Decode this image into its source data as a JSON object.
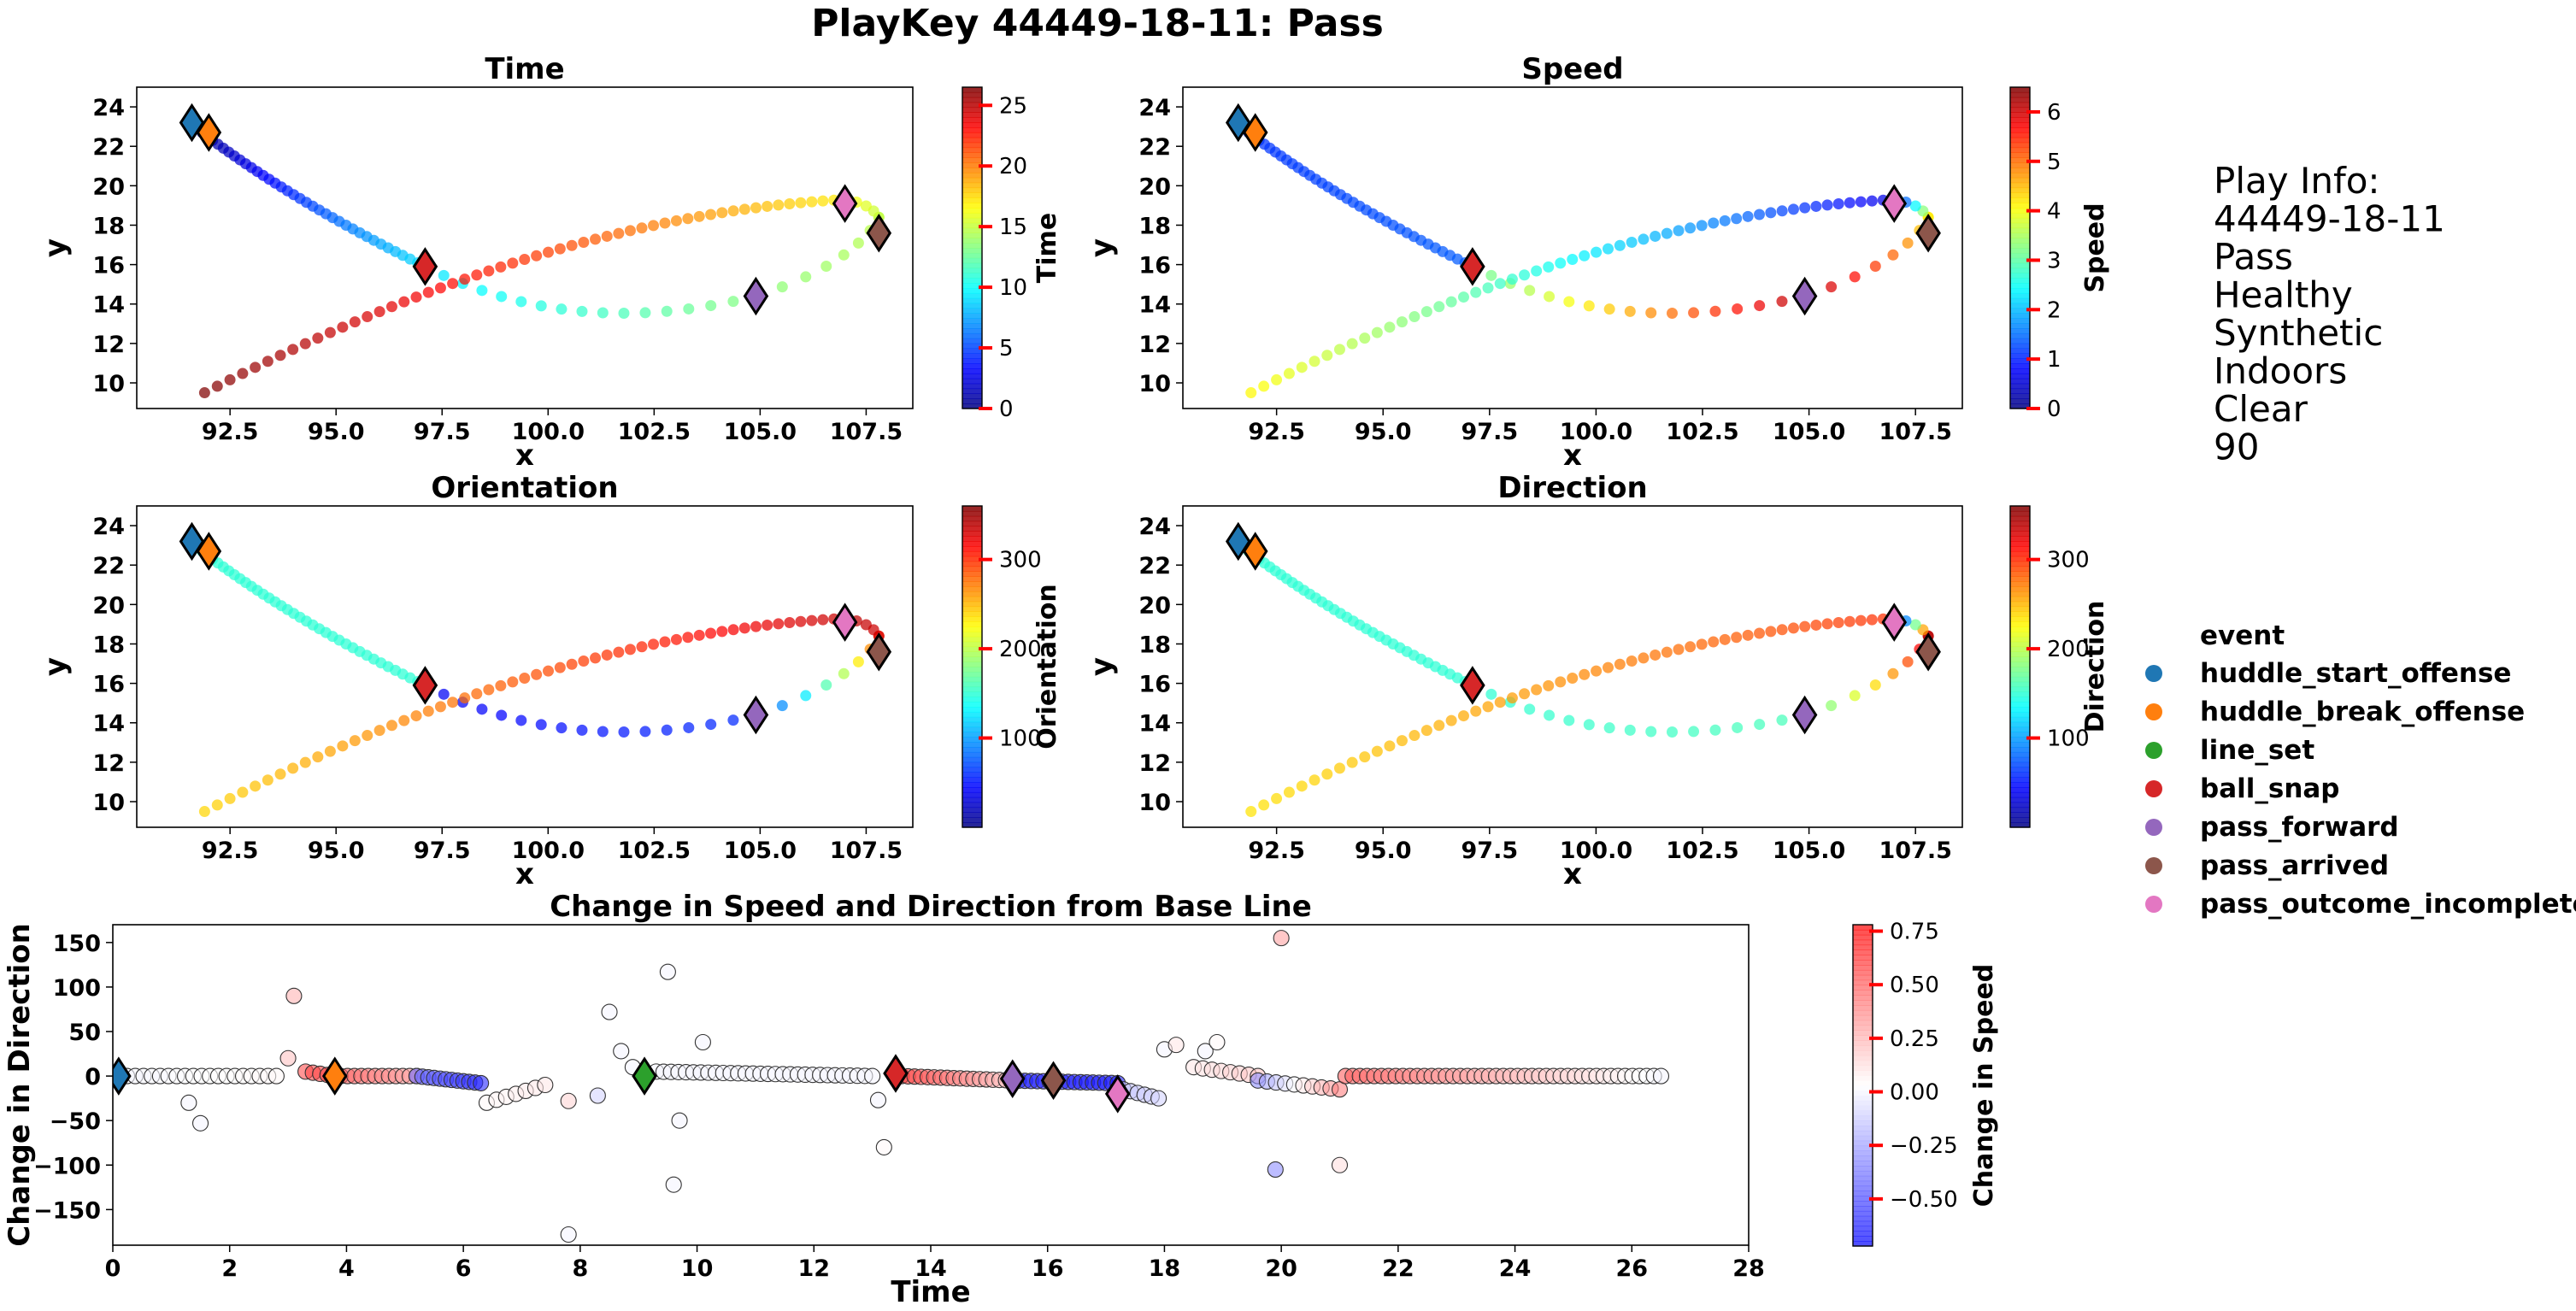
{
  "figure": {
    "title": "PlayKey 44449-18-11: Pass"
  },
  "play_info": {
    "lines": [
      "Play Info:",
      "44449-18-11",
      "Pass",
      "Healthy",
      "Synthetic",
      "Indoors",
      "Clear",
      "90"
    ]
  },
  "legend": {
    "title": "event",
    "items": [
      {
        "label": "huddle_start_offense",
        "color": "#1f77b4"
      },
      {
        "label": "huddle_break_offense",
        "color": "#ff7f0e"
      },
      {
        "label": "line_set",
        "color": "#2ca02c"
      },
      {
        "label": "ball_snap",
        "color": "#d62728"
      },
      {
        "label": "pass_forward",
        "color": "#9467bd"
      },
      {
        "label": "pass_arrived",
        "color": "#8c564b"
      },
      {
        "label": "pass_outcome_incomplete",
        "color": "#e377c2"
      }
    ]
  },
  "chart_data": [
    {
      "type": "scatter",
      "title": "Time",
      "xlabel": "x",
      "ylabel": "y",
      "xlim": [
        90.3,
        108.6
      ],
      "ylim": [
        8.7,
        25.0
      ],
      "xticks": [
        92.5,
        95.0,
        97.5,
        100.0,
        102.5,
        105.0,
        107.5
      ],
      "yticks": [
        10,
        12,
        14,
        16,
        18,
        20,
        22,
        24
      ],
      "colorbar": {
        "label": "Time",
        "range": [
          0,
          26.5
        ],
        "ticks": [
          0,
          5,
          10,
          15,
          20,
          25
        ],
        "cmap": "jet"
      },
      "color_by": "t",
      "path": "trajectory"
    },
    {
      "type": "scatter",
      "title": "Speed",
      "xlabel": "x",
      "ylabel": "y",
      "xlim": [
        90.3,
        108.6
      ],
      "ylim": [
        8.7,
        25.0
      ],
      "xticks": [
        92.5,
        95.0,
        97.5,
        100.0,
        102.5,
        105.0,
        107.5
      ],
      "yticks": [
        10,
        12,
        14,
        16,
        18,
        20,
        22,
        24
      ],
      "colorbar": {
        "label": "Speed",
        "range": [
          0,
          6.5
        ],
        "ticks": [
          0,
          1,
          2,
          3,
          4,
          5,
          6
        ],
        "cmap": "jet"
      },
      "color_by": "s",
      "path": "trajectory"
    },
    {
      "type": "scatter",
      "title": "Orientation",
      "xlabel": "x",
      "ylabel": "y",
      "xlim": [
        90.3,
        108.6
      ],
      "ylim": [
        8.7,
        25.0
      ],
      "xticks": [
        92.5,
        95.0,
        97.5,
        100.0,
        102.5,
        105.0,
        107.5
      ],
      "yticks": [
        10,
        12,
        14,
        16,
        18,
        20,
        22,
        24
      ],
      "colorbar": {
        "label": "Orientation",
        "range": [
          0,
          360
        ],
        "ticks": [
          100,
          200,
          300
        ],
        "cmap": "jet"
      },
      "color_by": "o",
      "path": "trajectory"
    },
    {
      "type": "scatter",
      "title": "Direction",
      "xlabel": "x",
      "ylabel": "y",
      "xlim": [
        90.3,
        108.6
      ],
      "ylim": [
        8.7,
        25.0
      ],
      "xticks": [
        92.5,
        95.0,
        97.5,
        100.0,
        102.5,
        105.0,
        107.5
      ],
      "yticks": [
        10,
        12,
        14,
        16,
        18,
        20,
        22,
        24
      ],
      "colorbar": {
        "label": "Direction",
        "range": [
          0,
          360
        ],
        "ticks": [
          100,
          200,
          300
        ],
        "cmap": "jet"
      },
      "color_by": "d",
      "path": "trajectory"
    },
    {
      "type": "scatter",
      "title": "Change in Speed and Direction from Base Line",
      "xlabel": "Time",
      "ylabel": "Change in Direction",
      "xlim": [
        0,
        28
      ],
      "ylim": [
        -190,
        170
      ],
      "xticks": [
        0,
        2,
        4,
        6,
        8,
        10,
        12,
        14,
        16,
        18,
        20,
        22,
        24,
        26,
        28
      ],
      "yticks": [
        -150,
        -100,
        -50,
        0,
        50,
        100,
        150
      ],
      "colorbar": {
        "label": "Change in Speed",
        "range": [
          -0.72,
          0.78
        ],
        "ticks": [
          -0.5,
          -0.25,
          0.0,
          0.25,
          0.5,
          0.75
        ],
        "tick_labels": [
          "−0.50",
          "−0.25",
          "0.00",
          "0.25",
          "0.50",
          "0.75"
        ],
        "cmap": "bwr"
      },
      "series_ref": "changes"
    }
  ],
  "trajectory": {
    "segments": [
      {
        "from": [
          91.6,
          23.1
        ],
        "to": [
          97.1,
          15.9
        ],
        "ctrl": [
          93.8,
          19.4
        ],
        "n": 38,
        "t": [
          0.0,
          9.1
        ],
        "s": [
          1.1,
          1.4
        ],
        "o": [
          150,
          150
        ],
        "d": [
          150,
          150
        ]
      },
      {
        "from": [
          97.1,
          15.9
        ],
        "to": [
          104.9,
          14.4
        ],
        "ctrl": [
          100.6,
          12.1
        ],
        "n": 17,
        "t": [
          9.1,
          13.4
        ],
        "s": [
          3.0,
          6.2
        ],
        "o": [
          40,
          60
        ],
        "d": [
          150,
          160
        ]
      },
      {
        "from": [
          104.9,
          14.4
        ],
        "to": [
          107.8,
          18.4
        ],
        "ctrl": [
          107.2,
          16.0
        ],
        "n": 8,
        "t": [
          13.4,
          14.9
        ],
        "s": [
          6.2,
          4.2
        ],
        "o": [
          60,
          300
        ],
        "d": [
          160,
          340
        ]
      },
      {
        "from": [
          107.8,
          18.4
        ],
        "to": [
          107.0,
          19.3
        ],
        "ctrl": [
          107.6,
          19.1
        ],
        "n": 5,
        "t": [
          14.9,
          16.6
        ],
        "s": [
          4.2,
          0.6
        ],
        "o": [
          330,
          340
        ],
        "d": [
          340,
          10
        ]
      },
      {
        "from": [
          107.0,
          19.3
        ],
        "to": [
          91.9,
          9.5
        ],
        "ctrl": [
          100.0,
          18.5
        ],
        "n": 55,
        "t": [
          17.0,
          26.5
        ],
        "s": [
          0.6,
          4.1
        ],
        "o": [
          335,
          240
        ],
        "d": [
          300,
          235
        ]
      }
    ],
    "events": [
      {
        "event": "huddle_start_offense",
        "x": 91.6,
        "y": 23.2,
        "t": 0.1
      },
      {
        "event": "huddle_break_offense",
        "x": 92.0,
        "y": 22.7,
        "t": 3.8
      },
      {
        "event": "ball_snap",
        "x": 97.1,
        "y": 15.9,
        "t": 13.4
      },
      {
        "event": "pass_forward",
        "x": 104.9,
        "y": 14.4,
        "t": 15.4
      },
      {
        "event": "pass_arrived",
        "x": 107.8,
        "y": 17.6,
        "t": 16.1
      },
      {
        "event": "pass_outcome_incomplete",
        "x": 107.0,
        "y": 19.1,
        "t": 17.2
      }
    ]
  },
  "changes": {
    "baseline_segments": [
      {
        "t": [
          0.1,
          2.8
        ],
        "n": 20,
        "dir": [
          0,
          0
        ],
        "spd": [
          0.0,
          0.05
        ]
      },
      {
        "t": [
          3.3,
          3.8
        ],
        "n": 5,
        "dir": [
          5,
          0
        ],
        "spd": [
          0.55,
          0.6
        ]
      },
      {
        "t": [
          3.9,
          5.2
        ],
        "n": 12,
        "dir": [
          0,
          0
        ],
        "spd": [
          0.5,
          0.3
        ]
      },
      {
        "t": [
          5.2,
          6.3
        ],
        "n": 12,
        "dir": [
          0,
          -8
        ],
        "spd": [
          -0.4,
          -0.6
        ]
      },
      {
        "t": [
          6.4,
          7.4
        ],
        "n": 7,
        "dir": [
          -30,
          -10
        ],
        "spd": [
          0.05,
          0.1
        ]
      },
      {
        "t": [
          9.3,
          13.0
        ],
        "n": 30,
        "dir": [
          5,
          0
        ],
        "spd": [
          0.0,
          0.0
        ]
      },
      {
        "t": [
          13.5,
          15.4
        ],
        "n": 18,
        "dir": [
          0,
          -5
        ],
        "spd": [
          0.6,
          0.2
        ]
      },
      {
        "t": [
          15.4,
          17.2
        ],
        "n": 18,
        "dir": [
          -5,
          -8
        ],
        "spd": [
          -0.6,
          -0.65
        ]
      },
      {
        "t": [
          17.3,
          17.9
        ],
        "n": 6,
        "dir": [
          -15,
          -25
        ],
        "spd": [
          -0.15,
          -0.1
        ]
      },
      {
        "t": [
          18.5,
          19.6
        ],
        "n": 8,
        "dir": [
          10,
          0
        ],
        "spd": [
          0.1,
          0.2
        ]
      },
      {
        "t": [
          19.6,
          21.0
        ],
        "n": 10,
        "dir": [
          -5,
          -15
        ],
        "spd": [
          -0.3,
          0.4
        ]
      },
      {
        "t": [
          21.1,
          26.5
        ],
        "n": 45,
        "dir": [
          0,
          0
        ],
        "spd": [
          0.5,
          0.0
        ]
      }
    ],
    "outliers": [
      {
        "t": 1.3,
        "dir": -30,
        "spd": 0.0
      },
      {
        "t": 1.5,
        "dir": -53,
        "spd": 0.0
      },
      {
        "t": 3.0,
        "dir": 20,
        "spd": 0.2
      },
      {
        "t": 3.1,
        "dir": 90,
        "spd": 0.25
      },
      {
        "t": 7.8,
        "dir": -178,
        "spd": 0.0
      },
      {
        "t": 7.8,
        "dir": -28,
        "spd": 0.15
      },
      {
        "t": 8.3,
        "dir": -22,
        "spd": -0.1
      },
      {
        "t": 8.5,
        "dir": 72,
        "spd": 0.0
      },
      {
        "t": 8.7,
        "dir": 28,
        "spd": 0.0
      },
      {
        "t": 8.9,
        "dir": 10,
        "spd": 0.0
      },
      {
        "t": 9.5,
        "dir": 117,
        "spd": 0.0
      },
      {
        "t": 9.6,
        "dir": -122,
        "spd": 0.0
      },
      {
        "t": 9.7,
        "dir": -50,
        "spd": 0.0
      },
      {
        "t": 10.1,
        "dir": 38,
        "spd": 0.0
      },
      {
        "t": 13.1,
        "dir": -27,
        "spd": 0.0
      },
      {
        "t": 13.2,
        "dir": -80,
        "spd": 0.05
      },
      {
        "t": 18.0,
        "dir": 30,
        "spd": 0.0
      },
      {
        "t": 18.2,
        "dir": 35,
        "spd": 0.1
      },
      {
        "t": 18.7,
        "dir": 28,
        "spd": 0.0
      },
      {
        "t": 18.9,
        "dir": 38,
        "spd": 0.05
      },
      {
        "t": 19.9,
        "dir": -105,
        "spd": -0.3
      },
      {
        "t": 20.0,
        "dir": 155,
        "spd": 0.3
      },
      {
        "t": 21.0,
        "dir": -100,
        "spd": 0.12
      }
    ],
    "events": [
      {
        "event": "huddle_start_offense",
        "t": 0.1,
        "dir": 0
      },
      {
        "event": "huddle_break_offense",
        "t": 3.8,
        "dir": 0
      },
      {
        "event": "line_set",
        "t": 9.1,
        "dir": 0
      },
      {
        "event": "ball_snap",
        "t": 13.4,
        "dir": 3
      },
      {
        "event": "pass_forward",
        "t": 15.4,
        "dir": -3
      },
      {
        "event": "pass_arrived",
        "t": 16.1,
        "dir": -5
      },
      {
        "event": "pass_outcome_incomplete",
        "t": 17.2,
        "dir": -20
      }
    ]
  }
}
